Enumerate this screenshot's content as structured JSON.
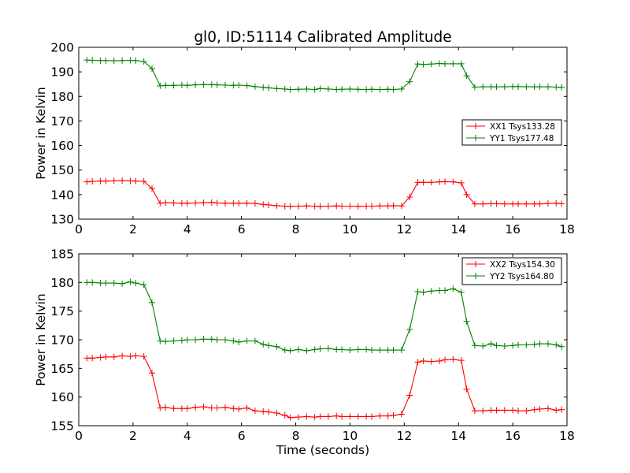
{
  "chart_data": {
    "title": "gl0, ID:51114 Calibrated Amplitude",
    "xlabel": "Time (seconds)",
    "panels": [
      {
        "type": "line",
        "ylabel": "Power in Kelvin",
        "xlim": [
          0,
          18
        ],
        "ylim": [
          130,
          200
        ],
        "xticks": [
          "0",
          "2",
          "4",
          "6",
          "8",
          "10",
          "12",
          "14",
          "16",
          "18"
        ],
        "yticks": [
          "130",
          "140",
          "150",
          "160",
          "170",
          "180",
          "190",
          "200"
        ],
        "legend_position": "right",
        "x": [
          0.3,
          0.5,
          0.8,
          1.0,
          1.3,
          1.6,
          1.9,
          2.1,
          2.4,
          2.7,
          3.0,
          3.2,
          3.5,
          3.8,
          4.0,
          4.3,
          4.6,
          4.9,
          5.1,
          5.4,
          5.7,
          5.9,
          6.2,
          6.5,
          6.8,
          7.0,
          7.3,
          7.6,
          7.8,
          8.1,
          8.4,
          8.7,
          8.9,
          9.2,
          9.5,
          9.7,
          10.0,
          10.3,
          10.6,
          10.8,
          11.1,
          11.4,
          11.6,
          11.9,
          12.2,
          12.5,
          12.7,
          13.0,
          13.3,
          13.5,
          13.8,
          14.1,
          14.3,
          14.6,
          14.9,
          15.2,
          15.4,
          15.7,
          16.0,
          16.2,
          16.5,
          16.8,
          17.0,
          17.3,
          17.6,
          17.8
        ],
        "series": [
          {
            "name": "XX1 Tsys133.28",
            "color": "#ff0000",
            "values": [
              145.2,
              145.4,
              145.5,
              145.5,
              145.6,
              145.7,
              145.6,
              145.5,
              145.4,
              142.5,
              136.5,
              136.7,
              136.6,
              136.5,
              136.5,
              136.6,
              136.7,
              136.8,
              136.6,
              136.5,
              136.5,
              136.5,
              136.5,
              136.4,
              136.0,
              135.8,
              135.5,
              135.3,
              135.2,
              135.3,
              135.4,
              135.3,
              135.2,
              135.3,
              135.4,
              135.3,
              135.3,
              135.2,
              135.3,
              135.3,
              135.4,
              135.4,
              135.5,
              135.4,
              139.0,
              145.0,
              145.0,
              145.0,
              145.2,
              145.3,
              145.2,
              144.8,
              140.0,
              136.2,
              136.2,
              136.3,
              136.3,
              136.2,
              136.2,
              136.2,
              136.2,
              136.2,
              136.2,
              136.4,
              136.5,
              136.3
            ]
          },
          {
            "name": "YY1 Tsys177.48",
            "color": "#008000",
            "values": [
              194.8,
              194.7,
              194.6,
              194.6,
              194.5,
              194.6,
              194.7,
              194.6,
              194.2,
              191.3,
              184.3,
              184.5,
              184.5,
              184.6,
              184.5,
              184.7,
              184.8,
              184.8,
              184.7,
              184.6,
              184.5,
              184.6,
              184.4,
              184.0,
              183.7,
              183.5,
              183.2,
              183.0,
              182.8,
              182.9,
              183.0,
              182.8,
              183.2,
              183.0,
              182.8,
              182.9,
              183.0,
              182.9,
              182.8,
              182.9,
              182.8,
              182.9,
              182.8,
              183.0,
              186.0,
              193.2,
              193.0,
              193.2,
              193.4,
              193.3,
              193.3,
              193.3,
              188.4,
              183.8,
              183.9,
              183.9,
              183.9,
              183.9,
              184.0,
              184.0,
              183.9,
              183.9,
              183.9,
              183.9,
              183.8,
              183.7
            ]
          }
        ]
      },
      {
        "type": "line",
        "ylabel": "Power in Kelvin",
        "xlim": [
          0,
          18
        ],
        "ylim": [
          155,
          185
        ],
        "xticks": [
          "0",
          "2",
          "4",
          "6",
          "8",
          "10",
          "12",
          "14",
          "16",
          "18"
        ],
        "yticks": [
          "155",
          "160",
          "165",
          "170",
          "175",
          "180",
          "185"
        ],
        "legend_position": "upper right",
        "x": [
          0.3,
          0.5,
          0.8,
          1.0,
          1.3,
          1.6,
          1.9,
          2.1,
          2.4,
          2.7,
          3.0,
          3.2,
          3.5,
          3.8,
          4.0,
          4.3,
          4.6,
          4.9,
          5.1,
          5.4,
          5.7,
          5.9,
          6.2,
          6.5,
          6.8,
          7.0,
          7.3,
          7.6,
          7.8,
          8.1,
          8.4,
          8.7,
          8.9,
          9.2,
          9.5,
          9.7,
          10.0,
          10.3,
          10.6,
          10.8,
          11.1,
          11.4,
          11.6,
          11.9,
          12.2,
          12.5,
          12.7,
          13.0,
          13.3,
          13.5,
          13.8,
          14.1,
          14.3,
          14.6,
          14.9,
          15.2,
          15.4,
          15.7,
          16.0,
          16.2,
          16.5,
          16.8,
          17.0,
          17.3,
          17.6,
          17.8
        ],
        "series": [
          {
            "name": "XX2 Tsys154.30",
            "color": "#ff0000",
            "values": [
              166.8,
              166.8,
              166.9,
              167.0,
              167.0,
              167.2,
              167.1,
              167.2,
              167.1,
              164.2,
              158.1,
              158.2,
              158.0,
              158.0,
              158.0,
              158.2,
              158.3,
              158.1,
              158.1,
              158.2,
              158.0,
              157.9,
              158.1,
              157.6,
              157.5,
              157.4,
              157.2,
              156.8,
              156.4,
              156.5,
              156.6,
              156.5,
              156.6,
              156.6,
              156.7,
              156.6,
              156.6,
              156.6,
              156.6,
              156.6,
              156.7,
              156.7,
              156.8,
              157.0,
              160.3,
              166.1,
              166.3,
              166.2,
              166.3,
              166.5,
              166.6,
              166.4,
              161.4,
              157.6,
              157.6,
              157.7,
              157.7,
              157.7,
              157.7,
              157.6,
              157.6,
              157.8,
              157.9,
              158.0,
              157.7,
              157.8
            ]
          },
          {
            "name": "YY2 Tsys164.80",
            "color": "#008000",
            "values": [
              180.0,
              180.0,
              179.9,
              179.9,
              179.9,
              179.8,
              180.1,
              179.9,
              179.6,
              176.5,
              169.8,
              169.7,
              169.8,
              169.9,
              170.0,
              170.0,
              170.1,
              170.1,
              170.0,
              170.0,
              169.8,
              169.6,
              169.8,
              169.8,
              169.2,
              169.0,
              168.8,
              168.2,
              168.1,
              168.3,
              168.1,
              168.3,
              168.4,
              168.5,
              168.3,
              168.3,
              168.2,
              168.3,
              168.3,
              168.2,
              168.2,
              168.2,
              168.2,
              168.2,
              171.8,
              178.4,
              178.3,
              178.5,
              178.6,
              178.6,
              178.9,
              178.3,
              173.2,
              169.0,
              168.9,
              169.3,
              169.0,
              168.9,
              169.0,
              169.1,
              169.1,
              169.2,
              169.3,
              169.3,
              169.1,
              168.8
            ]
          }
        ]
      }
    ]
  }
}
